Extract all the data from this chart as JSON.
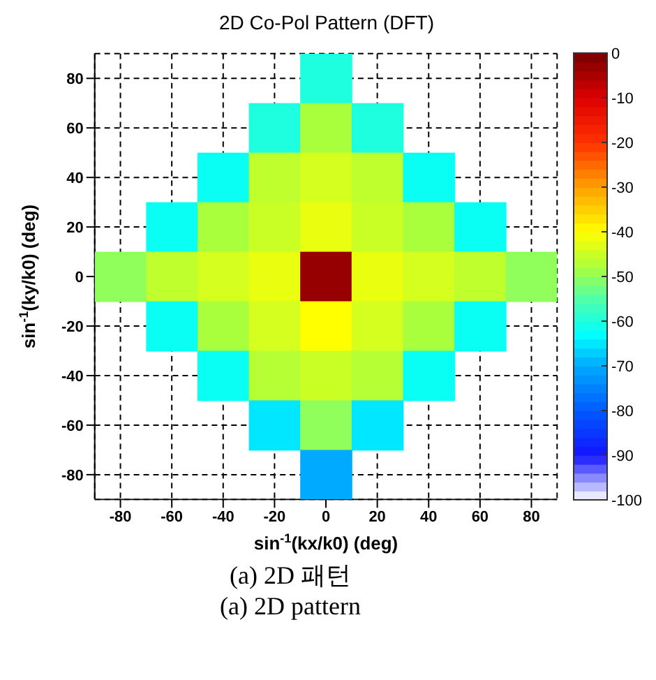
{
  "chart_data": {
    "type": "heatmap",
    "title": "2D Co-Pol Pattern (DFT)",
    "xlabel": "sin$^{-1}$(kx/k0) (deg)",
    "ylabel": "sin$^{-1}$(ky/k0) (deg)",
    "categories": [
      "-80",
      "-60",
      "-40",
      "-20",
      "0",
      "20",
      "40",
      "60",
      "80"
    ],
    "y_categories": [
      "80",
      "60",
      "40",
      "20",
      "0",
      "-20",
      "-40",
      "-60",
      "-80"
    ],
    "clim": [
      -100,
      0
    ],
    "cticks": [
      0,
      -10,
      -20,
      -30,
      -40,
      -50,
      -60,
      -70,
      -80,
      -90,
      -100
    ],
    "grid": true,
    "cells": [
      [
        null,
        null,
        null,
        null,
        -60,
        null,
        null,
        null,
        null
      ],
      [
        null,
        null,
        null,
        -60,
        -48,
        -60,
        null,
        null,
        null
      ],
      [
        null,
        null,
        -62,
        -46,
        -44,
        -46,
        -62,
        null,
        null
      ],
      [
        null,
        -62,
        -48,
        -45,
        -42,
        -45,
        -48,
        -62,
        null
      ],
      [
        -50,
        -46,
        -44,
        -42,
        -3,
        -42,
        -44,
        -46,
        -50
      ],
      [
        null,
        -62,
        -48,
        -44,
        -40,
        -44,
        -48,
        -62,
        null
      ],
      [
        null,
        null,
        -62,
        -47,
        -45,
        -47,
        -62,
        null,
        null
      ],
      [
        null,
        null,
        null,
        -65,
        -50,
        -65,
        null,
        null,
        null
      ],
      [
        null,
        null,
        null,
        null,
        -70,
        null,
        null,
        null,
        null
      ]
    ],
    "annotations": [
      "(a) 2D 패턴",
      "(a) 2D pattern"
    ]
  }
}
